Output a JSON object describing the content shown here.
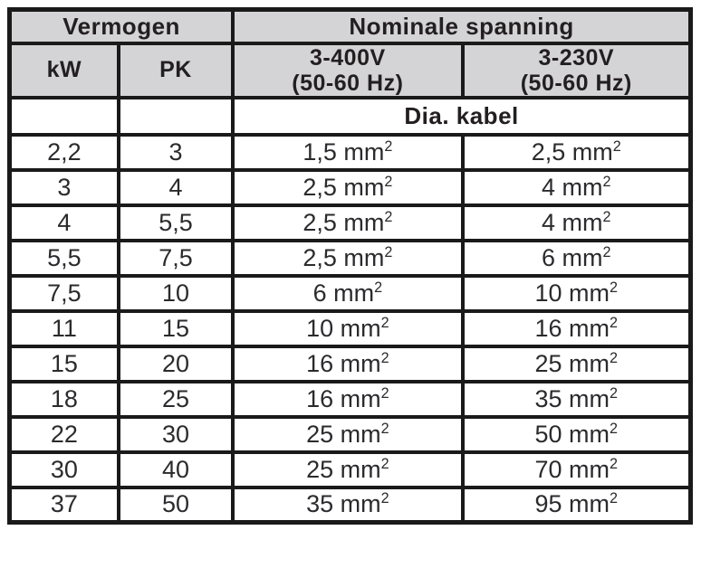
{
  "table": {
    "header": {
      "power_group": "Vermogen",
      "voltage_group": "Nominale spanning",
      "kw": "kW",
      "pk": "PK",
      "v400_line1": "3-400V",
      "v400_line2": "(50-60 Hz)",
      "v230_line1": "3-230V",
      "v230_line2": "(50-60 Hz)",
      "dia_kabel": "Dia. kabel"
    },
    "unit": "mm",
    "unit_exponent": "2",
    "rows": [
      {
        "kw": "2,2",
        "pk": "3",
        "cable_400": "1,5",
        "cable_230": "2,5"
      },
      {
        "kw": "3",
        "pk": "4",
        "cable_400": "2,5",
        "cable_230": "4"
      },
      {
        "kw": "4",
        "pk": "5,5",
        "cable_400": "2,5",
        "cable_230": "4"
      },
      {
        "kw": "5,5",
        "pk": "7,5",
        "cable_400": "2,5",
        "cable_230": "6"
      },
      {
        "kw": "7,5",
        "pk": "10",
        "cable_400": "6",
        "cable_230": "10"
      },
      {
        "kw": "11",
        "pk": "15",
        "cable_400": "10",
        "cable_230": "16"
      },
      {
        "kw": "15",
        "pk": "20",
        "cable_400": "16",
        "cable_230": "25"
      },
      {
        "kw": "18",
        "pk": "25",
        "cable_400": "16",
        "cable_230": "35"
      },
      {
        "kw": "22",
        "pk": "30",
        "cable_400": "25",
        "cable_230": "50"
      },
      {
        "kw": "30",
        "pk": "40",
        "cable_400": "25",
        "cable_230": "70"
      },
      {
        "kw": "37",
        "pk": "50",
        "cable_400": "35",
        "cable_230": "95"
      }
    ],
    "colors": {
      "header_bg": "#d4d4d6",
      "border": "#1a1a1a",
      "text": "#231f20"
    }
  }
}
